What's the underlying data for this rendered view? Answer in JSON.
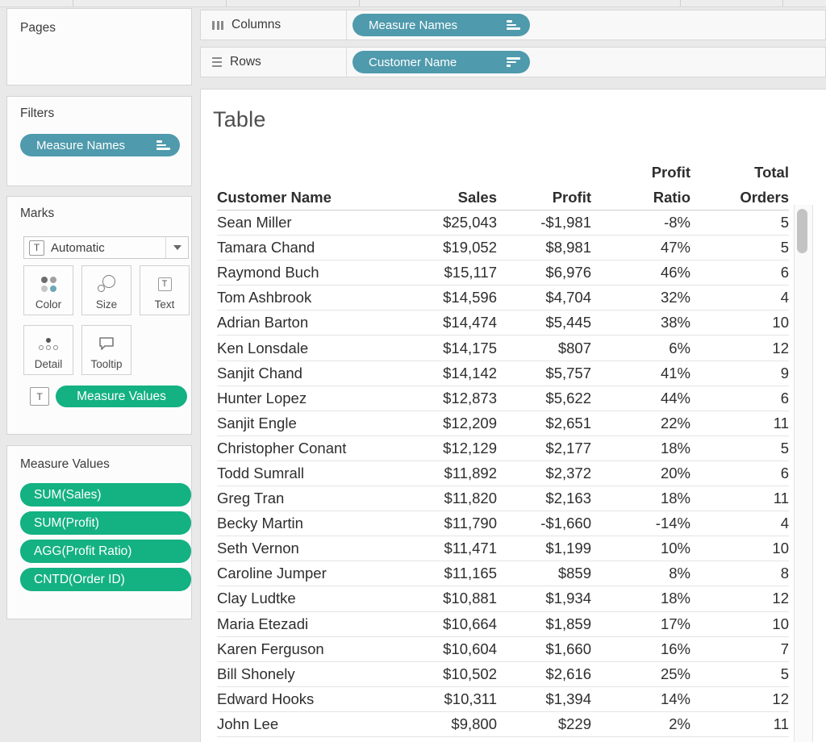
{
  "colors": {
    "dimension_pill": "#4F9AAC",
    "measure_pill": "#14B182",
    "background": "#e9e9e9"
  },
  "shelves": {
    "columns": {
      "label": "Columns",
      "pill": "Measure Names"
    },
    "rows": {
      "label": "Rows",
      "pill": "Customer Name"
    }
  },
  "sidebar": {
    "pages": {
      "title": "Pages"
    },
    "filters": {
      "title": "Filters",
      "pills": [
        "Measure Names"
      ]
    },
    "marks": {
      "title": "Marks",
      "mark_type_icon": "T",
      "mark_type": "Automatic",
      "buttons": [
        {
          "label": "Color"
        },
        {
          "label": "Size"
        },
        {
          "label": "Text"
        },
        {
          "label": "Detail"
        },
        {
          "label": "Tooltip"
        }
      ],
      "text_pill_icon": "T",
      "text_pill": "Measure Values"
    },
    "measure_values": {
      "title": "Measure Values",
      "pills": [
        "SUM(Sales)",
        "SUM(Profit)",
        "AGG(Profit Ratio)",
        "CNTD(Order ID)"
      ]
    }
  },
  "sheet": {
    "title": "Table",
    "table": {
      "headers": [
        {
          "lines": [
            "",
            "Customer Name"
          ],
          "align": "left"
        },
        {
          "lines": [
            "",
            "Sales"
          ],
          "align": "right"
        },
        {
          "lines": [
            "",
            "Profit"
          ],
          "align": "right"
        },
        {
          "lines": [
            "Profit",
            "Ratio"
          ],
          "align": "right"
        },
        {
          "lines": [
            "Total",
            "Orders"
          ],
          "align": "right"
        }
      ],
      "rows": [
        [
          "Sean Miller",
          "$25,043",
          "-$1,981",
          "-8%",
          "5"
        ],
        [
          "Tamara Chand",
          "$19,052",
          "$8,981",
          "47%",
          "5"
        ],
        [
          "Raymond Buch",
          "$15,117",
          "$6,976",
          "46%",
          "6"
        ],
        [
          "Tom Ashbrook",
          "$14,596",
          "$4,704",
          "32%",
          "4"
        ],
        [
          "Adrian Barton",
          "$14,474",
          "$5,445",
          "38%",
          "10"
        ],
        [
          "Ken Lonsdale",
          "$14,175",
          "$807",
          "6%",
          "12"
        ],
        [
          "Sanjit Chand",
          "$14,142",
          "$5,757",
          "41%",
          "9"
        ],
        [
          "Hunter Lopez",
          "$12,873",
          "$5,622",
          "44%",
          "6"
        ],
        [
          "Sanjit Engle",
          "$12,209",
          "$2,651",
          "22%",
          "11"
        ],
        [
          "Christopher Conant",
          "$12,129",
          "$2,177",
          "18%",
          "5"
        ],
        [
          "Todd Sumrall",
          "$11,892",
          "$2,372",
          "20%",
          "6"
        ],
        [
          "Greg Tran",
          "$11,820",
          "$2,163",
          "18%",
          "11"
        ],
        [
          "Becky Martin",
          "$11,790",
          "-$1,660",
          "-14%",
          "4"
        ],
        [
          "Seth Vernon",
          "$11,471",
          "$1,199",
          "10%",
          "10"
        ],
        [
          "Caroline Jumper",
          "$11,165",
          "$859",
          "8%",
          "8"
        ],
        [
          "Clay Ludtke",
          "$10,881",
          "$1,934",
          "18%",
          "12"
        ],
        [
          "Maria Etezadi",
          "$10,664",
          "$1,859",
          "17%",
          "10"
        ],
        [
          "Karen Ferguson",
          "$10,604",
          "$1,660",
          "16%",
          "7"
        ],
        [
          "Bill Shonely",
          "$10,502",
          "$2,616",
          "25%",
          "5"
        ],
        [
          "Edward Hooks",
          "$10,311",
          "$1,394",
          "14%",
          "12"
        ],
        [
          "John Lee",
          "$9,800",
          "$229",
          "2%",
          "11"
        ]
      ]
    }
  }
}
